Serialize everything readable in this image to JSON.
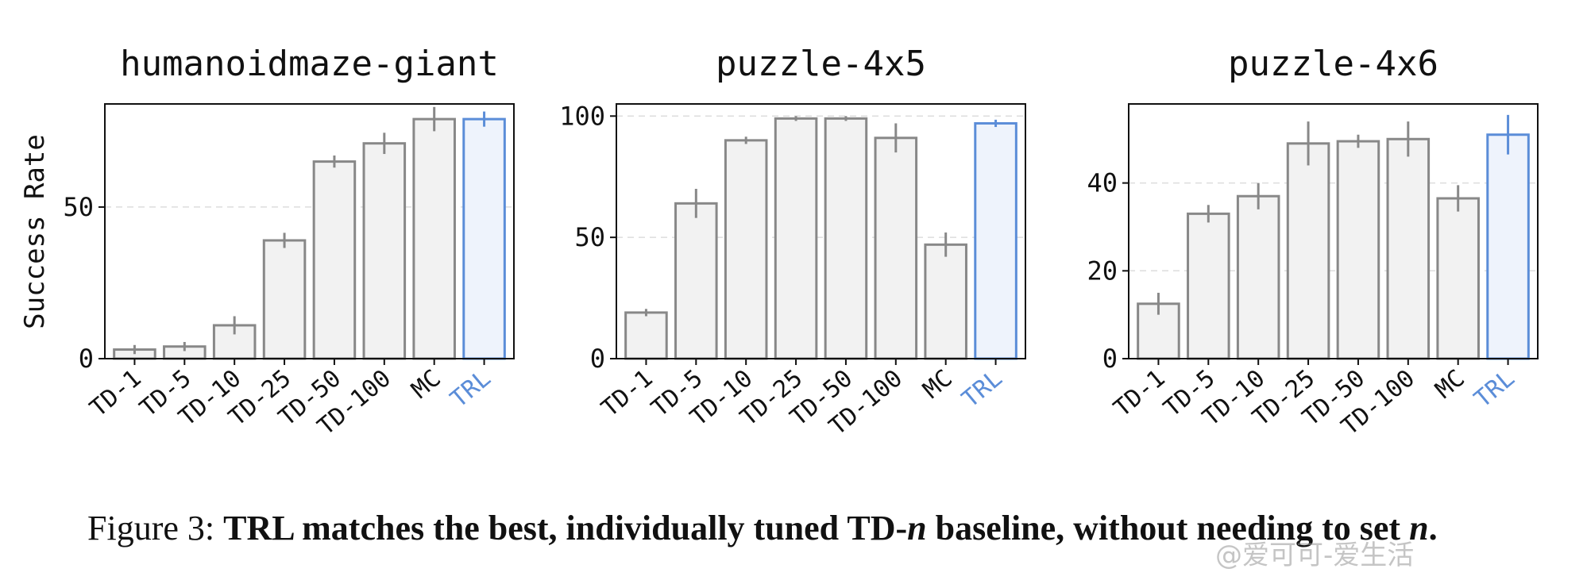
{
  "chart_data": [
    {
      "type": "bar",
      "title": "humanoidmaze-giant",
      "ylabel": "Success Rate",
      "xlabel": "",
      "categories": [
        "TD-1",
        "TD-5",
        "TD-10",
        "TD-25",
        "TD-50",
        "TD-100",
        "MC",
        "TRL"
      ],
      "values": [
        3,
        4,
        11,
        39,
        65,
        71,
        79,
        79
      ],
      "errors": [
        1.5,
        1.5,
        3,
        2.5,
        2,
        3.5,
        4,
        2.5
      ],
      "highlight": "TRL",
      "ylim": [
        0,
        84
      ],
      "yticks": [
        0,
        50
      ],
      "grid": "dashed-horizontal"
    },
    {
      "type": "bar",
      "title": "puzzle-4x5",
      "ylabel": "",
      "xlabel": "",
      "categories": [
        "TD-1",
        "TD-5",
        "TD-10",
        "TD-25",
        "TD-50",
        "TD-100",
        "MC",
        "TRL"
      ],
      "values": [
        19,
        64,
        90,
        99,
        99,
        91,
        47,
        97
      ],
      "errors": [
        1.5,
        6,
        1.5,
        1,
        1,
        6,
        5,
        1.5
      ],
      "highlight": "TRL",
      "ylim": [
        0,
        105
      ],
      "yticks": [
        0,
        50,
        100
      ],
      "grid": "dashed-horizontal"
    },
    {
      "type": "bar",
      "title": "puzzle-4x6",
      "ylabel": "",
      "xlabel": "",
      "categories": [
        "TD-1",
        "TD-5",
        "TD-10",
        "TD-25",
        "TD-50",
        "TD-100",
        "MC",
        "TRL"
      ],
      "values": [
        12.5,
        33,
        37,
        49,
        49.5,
        50,
        36.5,
        51
      ],
      "errors": [
        2.5,
        2,
        3,
        5,
        1.5,
        4,
        3,
        4.5
      ],
      "highlight": "TRL",
      "ylim": [
        0,
        58
      ],
      "yticks": [
        0,
        20,
        40
      ],
      "grid": "dashed-horizontal"
    }
  ],
  "caption": {
    "prefix": "Figure 3:",
    "text_a": "TRL matches the best, individually tuned TD-",
    "n": "n",
    "text_b": " baseline, without needing to set ",
    "n_end": "n",
    "period": "."
  },
  "watermark": "@爱可可-爱生活",
  "colors": {
    "bar_fill": "#f2f2f2",
    "bar_stroke": "#888888",
    "highlight_fill": "#eef3fc",
    "highlight_stroke": "#5b8dd8",
    "grid": "#dddddd",
    "axis": "#111111"
  }
}
